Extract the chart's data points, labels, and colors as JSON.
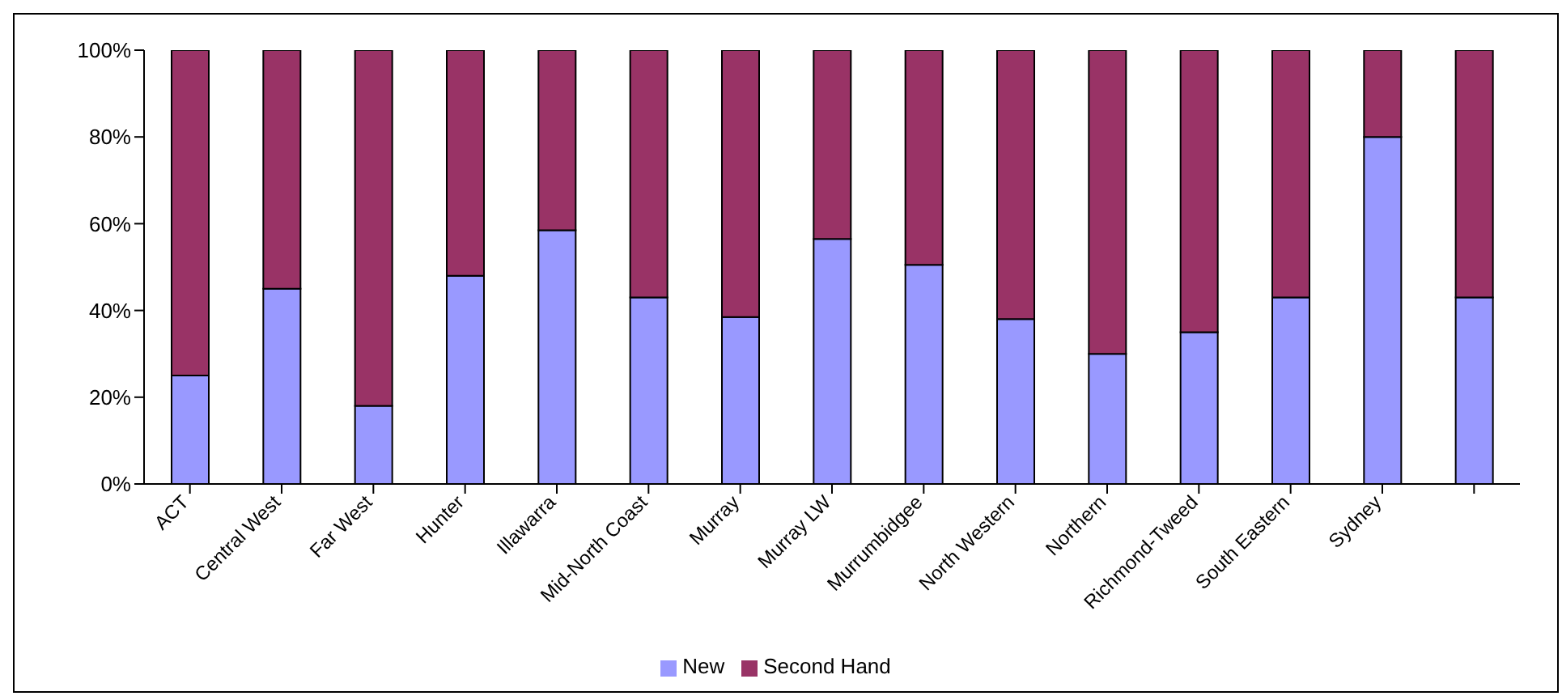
{
  "chart_data": {
    "type": "bar",
    "stacked": true,
    "categories": [
      "ACT",
      "Central West",
      "Far West",
      "Hunter",
      "Illawarra",
      "Mid-North Coast",
      "Murray",
      "Murray LW",
      "Murrumbidgee",
      "North Western",
      "Northern",
      "Richmond-Tweed",
      "South Eastern",
      "Sydney",
      null
    ],
    "series": [
      {
        "name": "New",
        "color": "#9999ff",
        "values": [
          25,
          45,
          18,
          48,
          58.5,
          43,
          38.5,
          56.5,
          50.5,
          38,
          30,
          35,
          43,
          80,
          43
        ]
      },
      {
        "name": "Second Hand",
        "color": "#993366",
        "values": [
          75,
          55,
          82,
          52,
          41.5,
          57,
          61.5,
          43.5,
          49.5,
          62,
          70,
          65,
          57,
          20,
          57
        ]
      }
    ],
    "ylim": [
      0,
      100
    ],
    "yticks": [
      {
        "value": 0,
        "label": "0%"
      },
      {
        "value": 20,
        "label": "20%"
      },
      {
        "value": 40,
        "label": "40%"
      },
      {
        "value": 60,
        "label": "60%"
      },
      {
        "value": 80,
        "label": "80%"
      },
      {
        "value": 100,
        "label": "100%"
      }
    ],
    "legend": "bottom"
  }
}
